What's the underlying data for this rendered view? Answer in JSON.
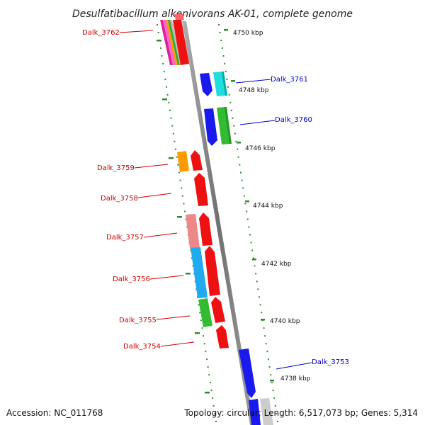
{
  "title": "Desulfatibacillum alkenivorans AK-01, complete genome",
  "accession": "Accession: NC_011768",
  "topology": "Topology: circular; Length: 6,517,073 bp; Genes: 5,314",
  "ticks": [
    "4750 kbp",
    "4748 kbp",
    "4746 kbp",
    "4744 kbp",
    "4742 kbp",
    "4740 kbp",
    "4738 kbp"
  ],
  "colors": {
    "left_label": "#cc0000",
    "right_label": "#0000cc",
    "backbone": "#808080",
    "tick_mark": "#2e8b2e"
  },
  "genes": {
    "dalk_3762": "Dalk_3762",
    "dalk_3761": "Dalk_3761",
    "dalk_3760": "Dalk_3760",
    "dalk_3759": "Dalk_3759",
    "dalk_3758": "Dalk_3758",
    "dalk_3757": "Dalk_3757",
    "dalk_3756": "Dalk_3756",
    "dalk_3755": "Dalk_3755",
    "dalk_3754": "Dalk_3754",
    "dalk_3753": "Dalk_3753"
  }
}
